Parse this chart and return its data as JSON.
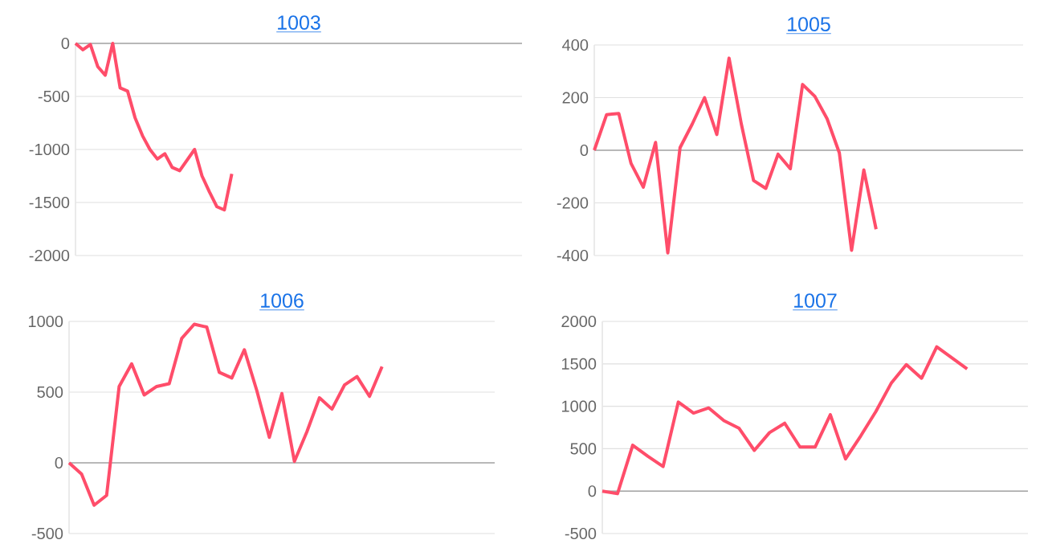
{
  "chart_data": [
    {
      "type": "line",
      "title": "1003",
      "categories": [
        null,
        null,
        null,
        null,
        null,
        null,
        null,
        null,
        null,
        null,
        null,
        null,
        null,
        null,
        null,
        null,
        null,
        null,
        null,
        null,
        null,
        null,
        null,
        null,
        null,
        null,
        null,
        null,
        null,
        null,
        null,
        null,
        null,
        null,
        null,
        null,
        null,
        null,
        null,
        null,
        null,
        null,
        null,
        null,
        null,
        null,
        null,
        null,
        null,
        null,
        null,
        null,
        null,
        null,
        null,
        null,
        null,
        null,
        null,
        null,
        null
      ],
      "values": [
        0,
        -60,
        -10,
        -220,
        -300,
        0,
        -420,
        -450,
        -700,
        -870,
        -1000,
        -1090,
        -1040,
        -1170,
        -1200,
        -1100,
        -1000,
        -1250,
        -1400,
        -1540,
        -1570,
        -1230,
        null,
        null,
        null,
        null,
        null,
        null,
        null,
        null,
        null,
        null,
        null,
        null,
        null,
        null,
        null,
        null,
        null,
        null,
        null,
        null,
        null,
        null,
        null,
        null,
        null,
        null,
        null,
        null,
        null,
        null,
        null,
        null,
        null,
        null,
        null,
        null,
        null,
        null,
        null
      ],
      "color": "#ff4d6a",
      "ylim": [
        -2000,
        0
      ],
      "yticks": [
        -2000,
        -1500,
        -1000,
        -500,
        0
      ],
      "grid": "y",
      "tick_labels": "y"
    },
    {
      "type": "line",
      "title": "1005",
      "categories": [
        null,
        null,
        null,
        null,
        null,
        null,
        null,
        null,
        null,
        null,
        null,
        null,
        null,
        null,
        null,
        null,
        null,
        null,
        null,
        null,
        null,
        null,
        null,
        null,
        null,
        null,
        null,
        null,
        null,
        null,
        null,
        null,
        null,
        null,
        null,
        null
      ],
      "values": [
        0,
        135,
        140,
        -50,
        -140,
        30,
        -390,
        10,
        100,
        200,
        60,
        350,
        100,
        -115,
        -145,
        -15,
        -70,
        250,
        205,
        120,
        -10,
        -380,
        -75,
        -300,
        null,
        null,
        null,
        null,
        null,
        null,
        null,
        null,
        null,
        null,
        null,
        null
      ],
      "color": "#ff4d6a",
      "ylim": [
        -400,
        400
      ],
      "yticks": [
        -400,
        -200,
        0,
        200,
        400
      ],
      "grid": "y",
      "tick_labels": "y"
    },
    {
      "type": "line",
      "title": "1006",
      "categories": [
        null,
        null,
        null,
        null,
        null,
        null,
        null,
        null,
        null,
        null,
        null,
        null,
        null,
        null,
        null,
        null,
        null,
        null,
        null,
        null,
        null,
        null,
        null,
        null,
        null,
        null,
        null,
        null,
        null,
        null,
        null,
        null,
        null,
        null,
        null
      ],
      "values": [
        0,
        -80,
        -300,
        -230,
        540,
        700,
        480,
        540,
        560,
        880,
        980,
        960,
        640,
        600,
        800,
        510,
        180,
        490,
        10,
        220,
        460,
        380,
        550,
        610,
        470,
        680,
        null,
        null,
        null,
        null,
        null,
        null,
        null,
        null,
        null
      ],
      "color": "#ff4d6a",
      "ylim": [
        -500,
        1000
      ],
      "yticks": [
        -500,
        0,
        500,
        1000
      ],
      "grid": "y",
      "tick_labels": "y"
    },
    {
      "type": "line",
      "title": "1007",
      "categories": [
        null,
        null,
        null,
        null,
        null,
        null,
        null,
        null,
        null,
        null,
        null,
        null,
        null,
        null,
        null,
        null,
        null,
        null,
        null,
        null,
        null,
        null,
        null,
        null,
        null,
        null,
        null,
        null,
        null
      ],
      "values": [
        0,
        -30,
        540,
        410,
        290,
        1050,
        920,
        980,
        830,
        740,
        480,
        690,
        800,
        520,
        520,
        900,
        380,
        650,
        940,
        1270,
        1490,
        1330,
        1700,
        1570,
        1440,
        null,
        null,
        null,
        null
      ],
      "color": "#ff4d6a",
      "ylim": [
        -500,
        2000
      ],
      "yticks": [
        -500,
        0,
        500,
        1000,
        1500,
        2000
      ],
      "grid": "y",
      "tick_labels": "y"
    }
  ]
}
